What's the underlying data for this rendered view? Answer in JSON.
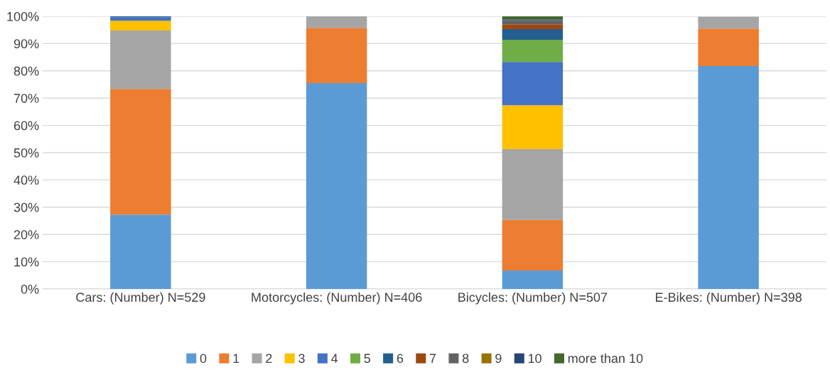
{
  "chart_data": {
    "type": "bar",
    "stacked": true,
    "categories": [
      "Cars: (Number) N=529",
      "Motorcycles: (Number) N=406",
      "Bicycles: (Number) N=507",
      "E-Bikes: (Number) N=398"
    ],
    "series": [
      {
        "name": "0",
        "color": "#5b9bd5",
        "values": [
          27.3,
          75.5,
          6.8,
          81.8
        ]
      },
      {
        "name": "1",
        "color": "#ed7d31",
        "values": [
          46.1,
          20.3,
          18.5,
          13.7
        ]
      },
      {
        "name": "2",
        "color": "#a5a5a5",
        "values": [
          21.4,
          4.2,
          26.0,
          4.4
        ]
      },
      {
        "name": "3",
        "color": "#ffc000",
        "values": [
          3.6,
          0,
          16.1,
          0
        ]
      },
      {
        "name": "4",
        "color": "#4472c4",
        "values": [
          1.2,
          0,
          15.9,
          null
        ]
      },
      {
        "name": "5",
        "color": "#70ad47",
        "values": [
          0,
          0,
          8.1,
          0
        ]
      },
      {
        "name": "6",
        "color": "#255e91",
        "values": [
          0.4,
          0,
          3.9,
          0
        ]
      },
      {
        "name": "7",
        "color": "#9e480e",
        "values": [
          0,
          0,
          1.8,
          0
        ]
      },
      {
        "name": "8",
        "color": "#636363",
        "values": [
          0,
          0,
          1.5,
          0
        ]
      },
      {
        "name": "9",
        "color": "#997300",
        "values": [
          0,
          0,
          0,
          0
        ]
      },
      {
        "name": "10",
        "color": "#264478",
        "values": [
          0,
          0,
          0.3,
          0
        ]
      },
      {
        "name": "more than 10",
        "color": "#43682b",
        "values": [
          0,
          0,
          1.1,
          0
        ]
      }
    ],
    "ylim": [
      0,
      100
    ],
    "yticks": [
      {
        "value": 0,
        "label": "0%"
      },
      {
        "value": 10,
        "label": "10%"
      },
      {
        "value": 20,
        "label": "20%"
      },
      {
        "value": 30,
        "label": "30%"
      },
      {
        "value": 40,
        "label": "40%"
      },
      {
        "value": 50,
        "label": "50%"
      },
      {
        "value": 60,
        "label": "60%"
      },
      {
        "value": 70,
        "label": "70%"
      },
      {
        "value": 80,
        "label": "80%"
      },
      {
        "value": 90,
        "label": "90%"
      },
      {
        "value": 100,
        "label": "100%"
      }
    ],
    "grid": "y",
    "legend": "bottom"
  }
}
